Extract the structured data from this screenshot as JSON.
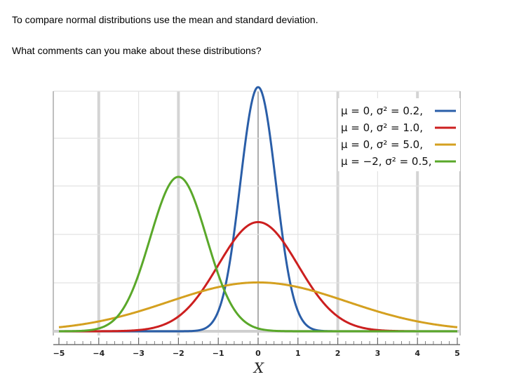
{
  "slide": {
    "intro": "To compare normal distributions use the mean and standard deviation.",
    "question": "What comments can you make about these distributions?"
  },
  "chart_data": {
    "type": "line",
    "xlabel": "X",
    "ylabel": "",
    "title": "",
    "xlim": [
      -5,
      5
    ],
    "ylim": [
      0,
      1.0
    ],
    "x_ticks": [
      "−5",
      "−4",
      "−3",
      "−2",
      "−1",
      "0",
      "1",
      "2",
      "3",
      "4",
      "5"
    ],
    "grid": true,
    "legend_position": "top-right",
    "series": [
      {
        "name": "μ = 0,  σ² = 0.2,",
        "mean": 0,
        "variance": 0.2,
        "color": "#2a5ea8"
      },
      {
        "name": "μ = 0,  σ² = 1.0,",
        "mean": 0,
        "variance": 1.0,
        "color": "#cc1f1f"
      },
      {
        "name": "μ = 0,  σ² = 5.0,",
        "mean": 0,
        "variance": 5.0,
        "color": "#d4a020"
      },
      {
        "name": "μ = −2,  σ² = 0.5,",
        "mean": -2,
        "variance": 0.5,
        "color": "#5aa82a"
      }
    ]
  }
}
